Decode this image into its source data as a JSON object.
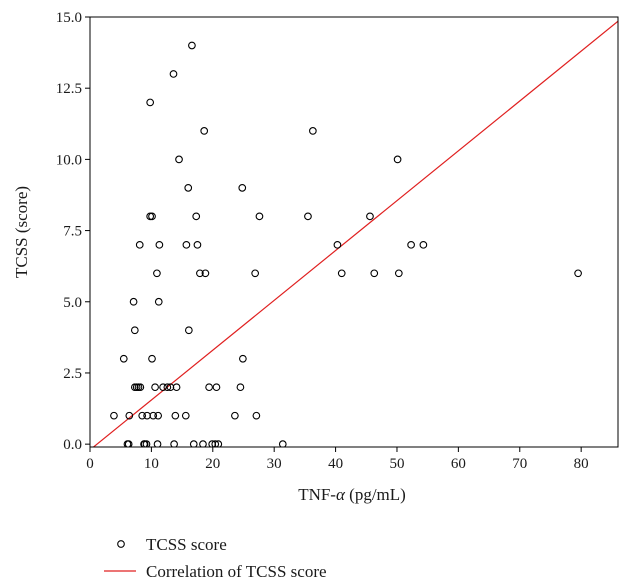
{
  "chart_data": {
    "type": "scatter",
    "xlabel_main": "TNF-",
    "xlabel_greek": "α",
    "xlabel_unit": " (pg/mL)",
    "ylabel": "TCSS (score)",
    "xlim": [
      0,
      86
    ],
    "ylim": [
      -0.1,
      15
    ],
    "x_ticks": [
      0,
      10,
      20,
      30,
      40,
      50,
      60,
      70,
      80
    ],
    "x_tick_labels": [
      "0",
      "10",
      "20",
      "30",
      "40",
      "50",
      "60",
      "70",
      "80"
    ],
    "y_ticks": [
      0,
      2.5,
      5,
      7.5,
      10,
      12.5,
      15
    ],
    "y_tick_labels": [
      "0.0",
      "2.5",
      "5.0",
      "7.5",
      "10.0",
      "12.5",
      "15.0"
    ],
    "grid": false,
    "legend_position": "bottom",
    "series": [
      {
        "name": "TCSS score",
        "marker": "open-circle",
        "color": "#000000",
        "points": [
          [
            3.9,
            1
          ],
          [
            5.5,
            3
          ],
          [
            6.1,
            0
          ],
          [
            6.3,
            0
          ],
          [
            6.4,
            1
          ],
          [
            7.1,
            5
          ],
          [
            7.3,
            4
          ],
          [
            7.3,
            2
          ],
          [
            7.6,
            2
          ],
          [
            7.9,
            2
          ],
          [
            8.1,
            7
          ],
          [
            8.2,
            2
          ],
          [
            8.5,
            1
          ],
          [
            8.8,
            0
          ],
          [
            8.9,
            0
          ],
          [
            9.2,
            0
          ],
          [
            9.3,
            1
          ],
          [
            9.8,
            12
          ],
          [
            9.8,
            8
          ],
          [
            10.1,
            8
          ],
          [
            10.1,
            3
          ],
          [
            10.3,
            1
          ],
          [
            10.6,
            2
          ],
          [
            10.9,
            6
          ],
          [
            11.0,
            0
          ],
          [
            11.1,
            1
          ],
          [
            11.2,
            5
          ],
          [
            11.3,
            7
          ],
          [
            11.9,
            2
          ],
          [
            12.6,
            2
          ],
          [
            13.1,
            2
          ],
          [
            13.6,
            13
          ],
          [
            13.7,
            0
          ],
          [
            13.9,
            1
          ],
          [
            14.1,
            2
          ],
          [
            14.5,
            10
          ],
          [
            15.6,
            1
          ],
          [
            15.7,
            7
          ],
          [
            16.0,
            9
          ],
          [
            16.1,
            4
          ],
          [
            16.6,
            14
          ],
          [
            16.9,
            0
          ],
          [
            17.3,
            8
          ],
          [
            17.5,
            7
          ],
          [
            17.9,
            6
          ],
          [
            18.4,
            0
          ],
          [
            18.6,
            11
          ],
          [
            18.8,
            6
          ],
          [
            19.4,
            2
          ],
          [
            19.9,
            0
          ],
          [
            20.4,
            0
          ],
          [
            20.6,
            2
          ],
          [
            20.9,
            0
          ],
          [
            23.6,
            1
          ],
          [
            24.5,
            2
          ],
          [
            24.8,
            9
          ],
          [
            24.9,
            3
          ],
          [
            26.9,
            6
          ],
          [
            27.1,
            1
          ],
          [
            27.6,
            8
          ],
          [
            31.4,
            0
          ],
          [
            35.5,
            8
          ],
          [
            36.3,
            11
          ],
          [
            40.3,
            7
          ],
          [
            41.0,
            6
          ],
          [
            45.6,
            8
          ],
          [
            46.3,
            6
          ],
          [
            50.1,
            10
          ],
          [
            50.3,
            6
          ],
          [
            52.3,
            7
          ],
          [
            54.3,
            7
          ],
          [
            79.5,
            6
          ]
        ]
      },
      {
        "name": "Correlation of TCSS score",
        "type": "line",
        "color": "#e02020",
        "points": [
          [
            0,
            -0.2
          ],
          [
            86,
            14.85
          ]
        ]
      }
    ]
  }
}
